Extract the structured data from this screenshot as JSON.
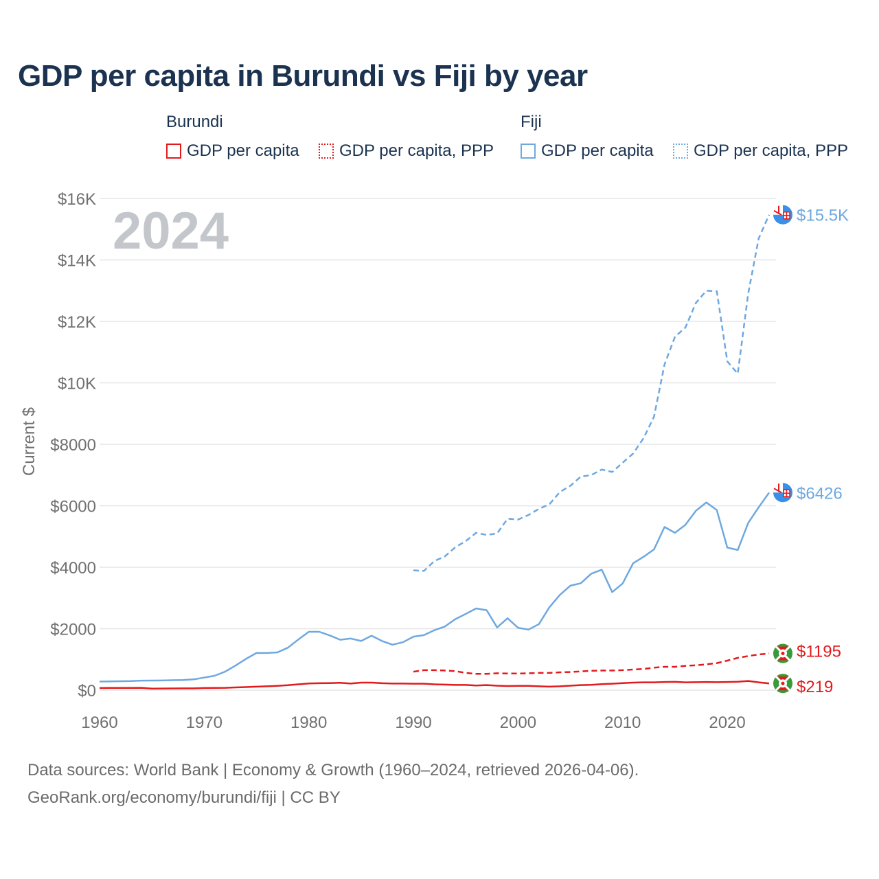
{
  "title": "GDP per capita in Burundi vs Fiji by year",
  "legend": {
    "groups": [
      {
        "name": "Burundi",
        "color": "#e31a1c",
        "items": [
          {
            "label": "GDP per capita",
            "style": "solid"
          },
          {
            "label": "GDP per capita, PPP",
            "style": "dotted"
          }
        ]
      },
      {
        "name": "Fiji",
        "color": "#6ea8e0",
        "items": [
          {
            "label": "GDP per capita",
            "style": "solid"
          },
          {
            "label": "GDP per capita, PPP",
            "style": "dotted"
          }
        ]
      }
    ]
  },
  "year_watermark": "2024",
  "footer": {
    "line1": "Data sources: World Bank | Economy & Growth (1960–2024, retrieved 2026-04-06).",
    "line2": "GeoRank.org/economy/burundi/fiji | CC BY"
  },
  "chart_data": {
    "type": "line",
    "title": "GDP per capita in Burundi vs Fiji by year",
    "ylabel": "Current $",
    "xlabel": "",
    "xlim": [
      1960,
      2024
    ],
    "ylim": [
      0,
      16000
    ],
    "grid": true,
    "x_ticks": [
      1960,
      1970,
      1980,
      1990,
      2000,
      2010,
      2020
    ],
    "x_tick_labels": [
      "1960",
      "1970",
      "1980",
      "1990",
      "2000",
      "2010",
      "2020"
    ],
    "y_ticks": [
      0,
      2000,
      4000,
      6000,
      8000,
      10000,
      12000,
      14000,
      16000
    ],
    "y_tick_labels": [
      "$0",
      "$2000",
      "$4000",
      "$6000",
      "$8000",
      "$10K",
      "$12K",
      "$14K",
      "$16K"
    ],
    "series": [
      {
        "name": "Fiji GDP per capita, PPP",
        "country": "Fiji",
        "color": "#6ea8e0",
        "dash": "dashed",
        "end_label": "$15.5K",
        "x": [
          1990,
          1991,
          1992,
          1993,
          1994,
          1995,
          1996,
          1997,
          1998,
          1999,
          2000,
          2001,
          2002,
          2003,
          2004,
          2005,
          2006,
          2007,
          2008,
          2009,
          2010,
          2011,
          2012,
          2013,
          2014,
          2015,
          2016,
          2017,
          2018,
          2019,
          2020,
          2021,
          2022,
          2023,
          2024
        ],
        "values": [
          3900,
          3880,
          4200,
          4350,
          4650,
          4850,
          5120,
          5050,
          5100,
          5580,
          5550,
          5700,
          5900,
          6050,
          6450,
          6650,
          6950,
          7000,
          7180,
          7100,
          7400,
          7700,
          8200,
          8900,
          10600,
          11500,
          11800,
          12600,
          13000,
          12980,
          10700,
          10300,
          12900,
          14700,
          15470
        ]
      },
      {
        "name": "Fiji GDP per capita",
        "country": "Fiji",
        "color": "#6ea8e0",
        "dash": "solid",
        "end_label": "$6426",
        "x": [
          1960,
          1961,
          1962,
          1963,
          1964,
          1965,
          1966,
          1967,
          1968,
          1969,
          1970,
          1971,
          1972,
          1973,
          1974,
          1975,
          1976,
          1977,
          1978,
          1979,
          1980,
          1981,
          1982,
          1983,
          1984,
          1985,
          1986,
          1987,
          1988,
          1989,
          1990,
          1991,
          1992,
          1993,
          1994,
          1995,
          1996,
          1997,
          1998,
          1999,
          2000,
          2001,
          2002,
          2003,
          2004,
          2005,
          2006,
          2007,
          2008,
          2009,
          2010,
          2011,
          2012,
          2013,
          2014,
          2015,
          2016,
          2017,
          2018,
          2019,
          2020,
          2021,
          2022,
          2023,
          2024
        ],
        "values": [
          280,
          285,
          290,
          295,
          310,
          312,
          315,
          325,
          330,
          350,
          410,
          470,
          600,
          800,
          1020,
          1210,
          1210,
          1230,
          1380,
          1650,
          1900,
          1900,
          1780,
          1640,
          1680,
          1600,
          1770,
          1600,
          1480,
          1560,
          1740,
          1790,
          1950,
          2070,
          2310,
          2480,
          2660,
          2600,
          2040,
          2340,
          2030,
          1970,
          2150,
          2700,
          3100,
          3400,
          3480,
          3790,
          3920,
          3190,
          3470,
          4130,
          4340,
          4580,
          5310,
          5120,
          5380,
          5840,
          6110,
          5860,
          4640,
          4560,
          5440,
          5950,
          6430
        ]
      },
      {
        "name": "Burundi GDP per capita, PPP",
        "country": "Burundi",
        "color": "#e31a1c",
        "dash": "dashed",
        "end_label": "$1195",
        "x": [
          1990,
          1991,
          1992,
          1993,
          1994,
          1995,
          1996,
          1997,
          1998,
          1999,
          2000,
          2001,
          2002,
          2003,
          2004,
          2005,
          2006,
          2007,
          2008,
          2009,
          2010,
          2011,
          2012,
          2013,
          2014,
          2015,
          2016,
          2017,
          2018,
          2019,
          2020,
          2021,
          2022,
          2023,
          2024
        ],
        "values": [
          600,
          650,
          650,
          640,
          620,
          560,
          530,
          530,
          550,
          540,
          540,
          550,
          560,
          560,
          580,
          590,
          610,
          630,
          640,
          640,
          650,
          670,
          690,
          730,
          760,
          760,
          790,
          810,
          840,
          880,
          960,
          1050,
          1110,
          1160,
          1195
        ]
      },
      {
        "name": "Burundi GDP per capita",
        "country": "Burundi",
        "color": "#e31a1c",
        "dash": "solid",
        "end_label": "$219",
        "x": [
          1960,
          1961,
          1962,
          1963,
          1964,
          1965,
          1966,
          1967,
          1968,
          1969,
          1970,
          1971,
          1972,
          1973,
          1974,
          1975,
          1976,
          1977,
          1978,
          1979,
          1980,
          1981,
          1982,
          1983,
          1984,
          1985,
          1986,
          1987,
          1988,
          1989,
          1990,
          1991,
          1992,
          1993,
          1994,
          1995,
          1996,
          1997,
          1998,
          1999,
          2000,
          2001,
          2002,
          2003,
          2004,
          2005,
          2006,
          2007,
          2008,
          2009,
          2010,
          2011,
          2012,
          2013,
          2014,
          2015,
          2016,
          2017,
          2018,
          2019,
          2020,
          2021,
          2022,
          2023,
          2024
        ],
        "values": [
          70,
          71,
          72,
          74,
          76,
          52,
          54,
          55,
          57,
          59,
          70,
          72,
          75,
          90,
          100,
          115,
          125,
          140,
          160,
          190,
          220,
          225,
          230,
          240,
          215,
          245,
          245,
          225,
          215,
          215,
          210,
          210,
          190,
          180,
          170,
          170,
          150,
          165,
          145,
          135,
          140,
          140,
          125,
          115,
          125,
          145,
          165,
          175,
          195,
          210,
          230,
          245,
          255,
          255,
          265,
          270,
          255,
          260,
          265,
          260,
          265,
          275,
          300,
          255,
          219
        ]
      }
    ]
  }
}
